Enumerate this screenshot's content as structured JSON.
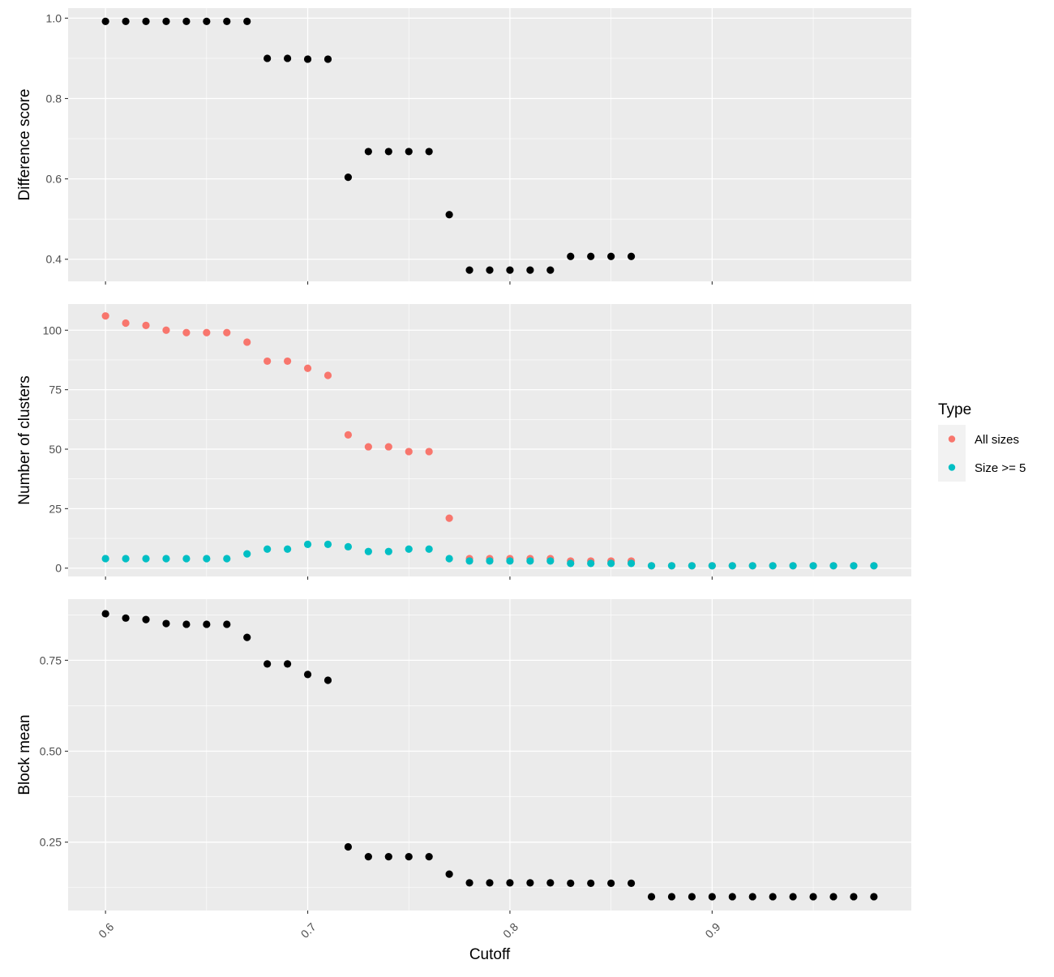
{
  "chart_data": {
    "type": "scatter",
    "xlabel": "Cutoff",
    "x_ticks": [
      "0.6",
      "0.7",
      "0.8",
      "0.9"
    ],
    "x_tick_values": [
      0.6,
      0.7,
      0.8,
      0.9
    ],
    "xlim": [
      0.5815,
      0.9985
    ],
    "background": "#ebebeb",
    "grid": true,
    "legend": {
      "title": "Type",
      "placement": "right",
      "items": [
        {
          "label": "All sizes",
          "color": "#f8766d"
        },
        {
          "label": "Size >= 5",
          "color": "#00bfc4"
        }
      ]
    },
    "panels": [
      {
        "ylabel": "Difference score",
        "ylim": [
          0.345,
          1.025
        ],
        "y_ticks": [
          "0.4",
          "0.6",
          "0.8",
          "1.0"
        ],
        "y_tick_values": [
          0.4,
          0.6,
          0.8,
          1.0
        ],
        "y_minor": [
          0.5,
          0.7,
          0.9
        ],
        "series": [
          {
            "color": "#000000",
            "x": [
              0.6,
              0.61,
              0.62,
              0.63,
              0.64,
              0.65,
              0.66,
              0.67,
              0.68,
              0.69,
              0.7,
              0.71,
              0.72,
              0.73,
              0.74,
              0.75,
              0.76,
              0.77,
              0.78,
              0.79,
              0.8,
              0.81,
              0.82,
              0.83,
              0.84,
              0.85,
              0.86
            ],
            "y": [
              0.992,
              0.992,
              0.992,
              0.992,
              0.992,
              0.992,
              0.992,
              0.992,
              0.9,
              0.9,
              0.898,
              0.898,
              0.604,
              0.668,
              0.668,
              0.668,
              0.668,
              0.511,
              0.373,
              0.373,
              0.373,
              0.373,
              0.373,
              0.407,
              0.407,
              0.407,
              0.407
            ]
          }
        ]
      },
      {
        "ylabel": "Number of clusters",
        "ylim": [
          -3.5,
          111
        ],
        "y_ticks": [
          "0",
          "25",
          "50",
          "75",
          "100"
        ],
        "y_tick_values": [
          0,
          25,
          50,
          75,
          100
        ],
        "y_minor": [
          12.5,
          37.5,
          62.5,
          87.5
        ],
        "series": [
          {
            "name": "All sizes",
            "color": "#f8766d",
            "x": [
              0.6,
              0.61,
              0.62,
              0.63,
              0.64,
              0.65,
              0.66,
              0.67,
              0.68,
              0.69,
              0.7,
              0.71,
              0.72,
              0.73,
              0.74,
              0.75,
              0.76,
              0.77,
              0.78,
              0.79,
              0.8,
              0.81,
              0.82,
              0.83,
              0.84,
              0.85,
              0.86,
              0.87,
              0.88,
              0.89,
              0.9,
              0.91,
              0.92,
              0.93,
              0.94,
              0.95,
              0.96,
              0.97,
              0.98
            ],
            "y": [
              106,
              103,
              102,
              100,
              99,
              99,
              99,
              95,
              87,
              87,
              84,
              81,
              56,
              51,
              51,
              49,
              49,
              21,
              4,
              4,
              4,
              4,
              4,
              3,
              3,
              3,
              3,
              1,
              1,
              1,
              1,
              1,
              1,
              1,
              1,
              1,
              1,
              1,
              1
            ]
          },
          {
            "name": "Size >= 5",
            "color": "#00bfc4",
            "x": [
              0.6,
              0.61,
              0.62,
              0.63,
              0.64,
              0.65,
              0.66,
              0.67,
              0.68,
              0.69,
              0.7,
              0.71,
              0.72,
              0.73,
              0.74,
              0.75,
              0.76,
              0.77,
              0.78,
              0.79,
              0.8,
              0.81,
              0.82,
              0.83,
              0.84,
              0.85,
              0.86,
              0.87,
              0.88,
              0.89,
              0.9,
              0.91,
              0.92,
              0.93,
              0.94,
              0.95,
              0.96,
              0.97,
              0.98
            ],
            "y": [
              4,
              4,
              4,
              4,
              4,
              4,
              4,
              6,
              8,
              8,
              10,
              10,
              9,
              7,
              7,
              8,
              8,
              4,
              3,
              3,
              3,
              3,
              3,
              2,
              2,
              2,
              2,
              1,
              1,
              1,
              1,
              1,
              1,
              1,
              1,
              1,
              1,
              1,
              1
            ]
          }
        ]
      },
      {
        "ylabel": "Block mean",
        "ylim": [
          0.062,
          0.918
        ],
        "y_ticks": [
          "0.25",
          "0.50",
          "0.75"
        ],
        "y_tick_values": [
          0.25,
          0.5,
          0.75
        ],
        "y_minor": [
          0.125,
          0.375,
          0.625,
          0.875
        ],
        "series": [
          {
            "color": "#000000",
            "x": [
              0.6,
              0.61,
              0.62,
              0.63,
              0.64,
              0.65,
              0.66,
              0.67,
              0.68,
              0.69,
              0.7,
              0.71,
              0.72,
              0.73,
              0.74,
              0.75,
              0.76,
              0.77,
              0.78,
              0.79,
              0.8,
              0.81,
              0.82,
              0.83,
              0.84,
              0.85,
              0.86,
              0.87,
              0.88,
              0.89,
              0.9,
              0.91,
              0.92,
              0.93,
              0.94,
              0.95,
              0.96,
              0.97,
              0.98
            ],
            "y": [
              0.878,
              0.866,
              0.862,
              0.851,
              0.849,
              0.849,
              0.849,
              0.813,
              0.74,
              0.74,
              0.711,
              0.695,
              0.237,
              0.21,
              0.21,
              0.21,
              0.21,
              0.162,
              0.138,
              0.138,
              0.138,
              0.138,
              0.138,
              0.137,
              0.137,
              0.137,
              0.137,
              0.1,
              0.1,
              0.1,
              0.1,
              0.1,
              0.1,
              0.1,
              0.1,
              0.1,
              0.1,
              0.1,
              0.1
            ]
          }
        ]
      }
    ]
  }
}
